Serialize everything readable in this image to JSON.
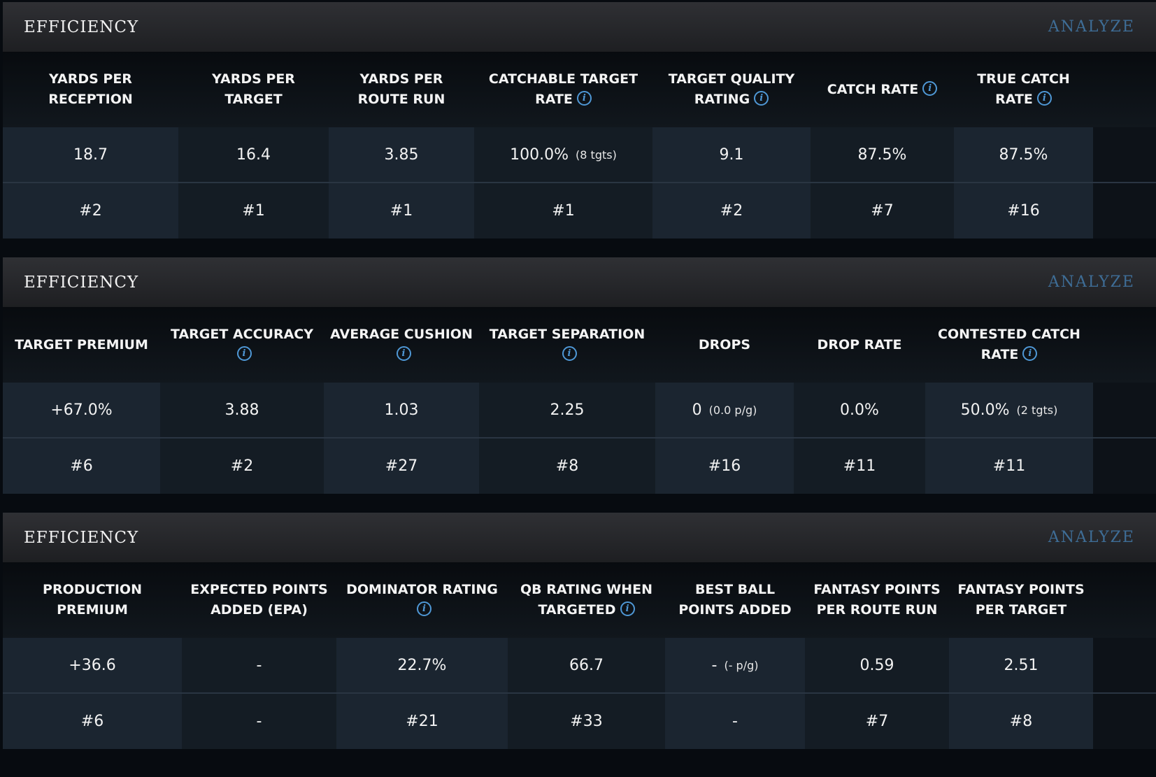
{
  "colors": {
    "page_background": "#070b10",
    "header_gradient_top": "#2f3034",
    "analyze_link": "#3e6d96",
    "info_icon": "#4f98d6",
    "cell_light": "#1b2530",
    "cell_dark": "#141c24"
  },
  "icons": {
    "info": "info-circle-icon",
    "info_glyph": "i"
  },
  "panels": [
    {
      "title": "EFFICIENCY",
      "analyze": "ANALYZE",
      "columns": [
        {
          "label": "YARDS PER RECEPTION",
          "info": false,
          "value": "18.7",
          "note": "",
          "rank": "#2"
        },
        {
          "label": "YARDS PER TARGET",
          "info": false,
          "value": "16.4",
          "note": "",
          "rank": "#1"
        },
        {
          "label": "YARDS PER ROUTE RUN",
          "info": false,
          "value": "3.85",
          "note": "",
          "rank": "#1"
        },
        {
          "label": "CATCHABLE TARGET RATE",
          "info": true,
          "value": "100.0%",
          "note": "(8 tgts)",
          "rank": "#1"
        },
        {
          "label": "TARGET QUALITY RATING",
          "info": true,
          "value": "9.1",
          "note": "",
          "rank": "#2"
        },
        {
          "label": "CATCH RATE",
          "info": true,
          "value": "87.5%",
          "note": "",
          "rank": "#7"
        },
        {
          "label": "TRUE CATCH RATE",
          "info": true,
          "value": "87.5%",
          "note": "",
          "rank": "#16"
        }
      ]
    },
    {
      "title": "EFFICIENCY",
      "analyze": "ANALYZE",
      "columns": [
        {
          "label": "TARGET PREMIUM",
          "info": false,
          "value": "+67.0%",
          "note": "",
          "rank": "#6"
        },
        {
          "label": "TARGET ACCURACY",
          "info": true,
          "value": "3.88",
          "note": "",
          "rank": "#2"
        },
        {
          "label": "AVERAGE CUSHION",
          "info": true,
          "value": "1.03",
          "note": "",
          "rank": "#27"
        },
        {
          "label": "TARGET SEPARATION",
          "info": true,
          "value": "2.25",
          "note": "",
          "rank": "#8"
        },
        {
          "label": "DROPS",
          "info": false,
          "value": "0",
          "note": "(0.0 p/g)",
          "rank": "#16"
        },
        {
          "label": "DROP RATE",
          "info": false,
          "value": "0.0%",
          "note": "",
          "rank": "#11"
        },
        {
          "label": "CONTESTED CATCH RATE",
          "info": true,
          "value": "50.0%",
          "note": "(2 tgts)",
          "rank": "#11"
        }
      ]
    },
    {
      "title": "EFFICIENCY",
      "analyze": "ANALYZE",
      "columns": [
        {
          "label": "PRODUCTION PREMIUM",
          "info": false,
          "value": "+36.6",
          "note": "",
          "rank": "#6"
        },
        {
          "label": "EXPECTED POINTS ADDED (EPA)",
          "info": false,
          "value": "-",
          "note": "",
          "rank": "-"
        },
        {
          "label": "DOMINATOR RATING",
          "info": true,
          "value": "22.7%",
          "note": "",
          "rank": "#21"
        },
        {
          "label": "QB RATING WHEN TARGETED",
          "info": true,
          "value": "66.7",
          "note": "",
          "rank": "#33"
        },
        {
          "label": "BEST BALL POINTS ADDED",
          "info": false,
          "value": "-",
          "note": "(- p/g)",
          "rank": "-"
        },
        {
          "label": "FANTASY POINTS PER ROUTE RUN",
          "info": false,
          "value": "0.59",
          "note": "",
          "rank": "#7"
        },
        {
          "label": "FANTASY POINTS PER TARGET",
          "info": false,
          "value": "2.51",
          "note": "",
          "rank": "#8"
        }
      ]
    }
  ]
}
